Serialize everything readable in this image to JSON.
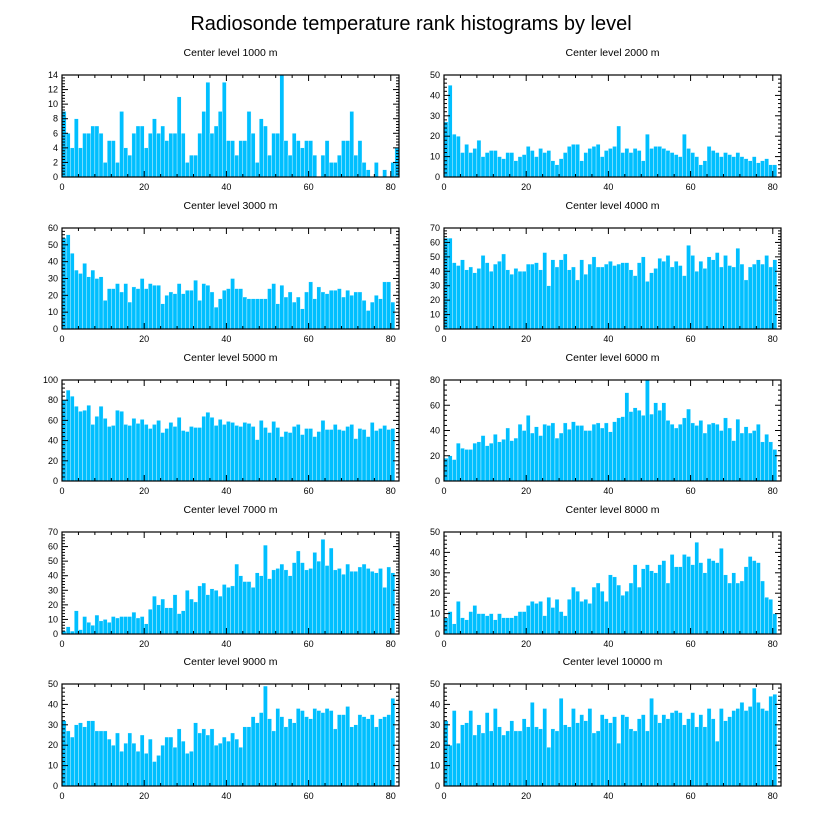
{
  "chart_data": {
    "type": "bar",
    "title": "Radiosonde temperature rank histograms by level",
    "panels": [
      {
        "title": "Center level 1000 m",
        "xlim": [
          0,
          82
        ],
        "ylim": [
          0,
          14
        ],
        "xticks": [
          0,
          20,
          40,
          60,
          80
        ],
        "yticks": [
          0,
          2,
          4,
          6,
          8,
          10,
          12,
          14
        ],
        "values": [
          9,
          6,
          4,
          8,
          4,
          6,
          6,
          7,
          7,
          6,
          2,
          5,
          5,
          2,
          9,
          4,
          3,
          6,
          7,
          7,
          4,
          6,
          8,
          6,
          7,
          5,
          6,
          6,
          11,
          6,
          2,
          3,
          3,
          6,
          9,
          13,
          6,
          7,
          9,
          13,
          5,
          5,
          3,
          5,
          5,
          9,
          6,
          2,
          8,
          7,
          3,
          6,
          6,
          14,
          5,
          3,
          6,
          5,
          4,
          5,
          5,
          3,
          0,
          3,
          5,
          2,
          2,
          3,
          5,
          5,
          9,
          3,
          5,
          2,
          1,
          0,
          2,
          0,
          1,
          0,
          2,
          4
        ]
      },
      {
        "title": "Center level 2000 m",
        "xlim": [
          0,
          82
        ],
        "ylim": [
          0,
          50
        ],
        "xticks": [
          0,
          20,
          40,
          60,
          80
        ],
        "yticks": [
          0,
          10,
          20,
          30,
          40,
          50
        ],
        "values": [
          27,
          45,
          21,
          20,
          12,
          16,
          12,
          14,
          18,
          10,
          12,
          13,
          13,
          10,
          9,
          12,
          12,
          8,
          10,
          11,
          15,
          13,
          10,
          14,
          12,
          13,
          8,
          6,
          9,
          12,
          15,
          16,
          16,
          8,
          12,
          14,
          15,
          16,
          10,
          13,
          14,
          15,
          25,
          12,
          14,
          12,
          14,
          13,
          8,
          21,
          14,
          15,
          15,
          14,
          13,
          12,
          11,
          10,
          21,
          14,
          12,
          10,
          6,
          8,
          15,
          13,
          12,
          10,
          12,
          11,
          10,
          12,
          10,
          9,
          8,
          10,
          7,
          8,
          9,
          6,
          6
        ]
      },
      {
        "title": "Center level 3000 m",
        "xlim": [
          0,
          82
        ],
        "ylim": [
          0,
          60
        ],
        "xticks": [
          0,
          20,
          40,
          60,
          80
        ],
        "yticks": [
          0,
          10,
          20,
          30,
          40,
          50,
          60
        ],
        "values": [
          54,
          56,
          45,
          35,
          33,
          39,
          31,
          35,
          30,
          31,
          17,
          24,
          24,
          27,
          22,
          27,
          16,
          25,
          24,
          30,
          24,
          27,
          26,
          26,
          15,
          20,
          22,
          21,
          27,
          21,
          23,
          23,
          29,
          17,
          27,
          26,
          22,
          13,
          18,
          23,
          24,
          30,
          24,
          24,
          19,
          18,
          18,
          18,
          18,
          18,
          24,
          27,
          15,
          26,
          19,
          22,
          16,
          19,
          12,
          22,
          28,
          18,
          25,
          22,
          21,
          23,
          23,
          24,
          19,
          23,
          20,
          22,
          22,
          17,
          11,
          16,
          20,
          18,
          28,
          28,
          16
        ]
      },
      {
        "title": "Center level 4000 m",
        "xlim": [
          0,
          82
        ],
        "ylim": [
          0,
          70
        ],
        "xticks": [
          0,
          20,
          40,
          60,
          80
        ],
        "yticks": [
          0,
          10,
          20,
          30,
          40,
          50,
          60,
          70
        ],
        "values": [
          63,
          63,
          46,
          44,
          48,
          41,
          43,
          39,
          42,
          51,
          46,
          40,
          45,
          47,
          52,
          41,
          38,
          42,
          40,
          40,
          45,
          45,
          46,
          41,
          53,
          30,
          48,
          43,
          48,
          52,
          41,
          43,
          34,
          48,
          38,
          45,
          50,
          43,
          43,
          45,
          47,
          44,
          45,
          46,
          46,
          41,
          37,
          46,
          50,
          33,
          39,
          42,
          49,
          47,
          51,
          43,
          47,
          44,
          37,
          58,
          51,
          40,
          47,
          42,
          50,
          48,
          53,
          43,
          51,
          44,
          43,
          56,
          45,
          34,
          43,
          45,
          48,
          45,
          51,
          43,
          48
        ]
      },
      {
        "title": "Center level 5000 m",
        "xlim": [
          0,
          82
        ],
        "ylim": [
          0,
          100
        ],
        "xticks": [
          0,
          20,
          40,
          60,
          80
        ],
        "yticks": [
          0,
          20,
          40,
          60,
          80,
          100
        ],
        "values": [
          80,
          90,
          84,
          74,
          69,
          70,
          75,
          56,
          64,
          74,
          62,
          54,
          55,
          70,
          69,
          56,
          55,
          62,
          57,
          61,
          56,
          52,
          56,
          60,
          48,
          52,
          58,
          54,
          63,
          50,
          49,
          54,
          53,
          53,
          64,
          68,
          63,
          55,
          61,
          56,
          59,
          58,
          55,
          54,
          58,
          57,
          54,
          41,
          60,
          53,
          48,
          59,
          53,
          44,
          49,
          48,
          54,
          56,
          46,
          52,
          52,
          44,
          49,
          60,
          51,
          51,
          56,
          51,
          50,
          54,
          56,
          42,
          52,
          51,
          44,
          58,
          50,
          52,
          55,
          51,
          52
        ]
      },
      {
        "title": "Center level 6000 m",
        "xlim": [
          0,
          82
        ],
        "ylim": [
          0,
          80
        ],
        "xticks": [
          0,
          20,
          40,
          60,
          80
        ],
        "yticks": [
          0,
          20,
          40,
          60,
          80
        ],
        "values": [
          18,
          20,
          17,
          30,
          26,
          25,
          25,
          30,
          31,
          36,
          28,
          30,
          37,
          31,
          33,
          42,
          32,
          34,
          45,
          40,
          52,
          38,
          43,
          36,
          45,
          44,
          46,
          34,
          38,
          46,
          41,
          47,
          44,
          44,
          40,
          40,
          45,
          46,
          42,
          46,
          39,
          47,
          50,
          51,
          70,
          55,
          58,
          56,
          52,
          80,
          53,
          62,
          56,
          62,
          48,
          45,
          42,
          45,
          50,
          57,
          46,
          44,
          48,
          38,
          45,
          46,
          45,
          40,
          50,
          42,
          32,
          49,
          38,
          43,
          38,
          40,
          45,
          31,
          37,
          31,
          25
        ]
      },
      {
        "title": "Center level 7000 m",
        "xlim": [
          0,
          82
        ],
        "ylim": [
          0,
          70
        ],
        "xticks": [
          0,
          20,
          40,
          60,
          80
        ],
        "yticks": [
          0,
          10,
          20,
          30,
          40,
          50,
          60,
          70
        ],
        "values": [
          2,
          5,
          2,
          16,
          3,
          12,
          8,
          6,
          13,
          9,
          10,
          8,
          12,
          11,
          12,
          12,
          12,
          15,
          11,
          12,
          7,
          17,
          26,
          20,
          24,
          18,
          18,
          27,
          14,
          16,
          30,
          24,
          22,
          33,
          35,
          27,
          31,
          30,
          26,
          34,
          32,
          33,
          48,
          40,
          36,
          36,
          32,
          42,
          40,
          61,
          38,
          44,
          45,
          48,
          44,
          40,
          49,
          57,
          49,
          44,
          45,
          56,
          50,
          65,
          47,
          59,
          44,
          45,
          41,
          48,
          43,
          43,
          46,
          48,
          45,
          43,
          42,
          45,
          32,
          46,
          42
        ]
      },
      {
        "title": "Center level 8000 m",
        "xlim": [
          0,
          82
        ],
        "ylim": [
          0,
          50
        ],
        "xticks": [
          0,
          20,
          40,
          60,
          80
        ],
        "yticks": [
          0,
          10,
          20,
          30,
          40,
          50
        ],
        "values": [
          8,
          11,
          5,
          16,
          8,
          7,
          11,
          14,
          10,
          10,
          9,
          10,
          7,
          10,
          8,
          8,
          8,
          9,
          11,
          11,
          14,
          16,
          15,
          16,
          9,
          18,
          13,
          17,
          11,
          9,
          17,
          23,
          21,
          16,
          17,
          15,
          23,
          25,
          21,
          16,
          29,
          28,
          24,
          19,
          21,
          25,
          34,
          23,
          32,
          34,
          31,
          30,
          34,
          36,
          25,
          39,
          33,
          33,
          39,
          38,
          34,
          45,
          35,
          30,
          37,
          36,
          35,
          42,
          29,
          25,
          30,
          25,
          26,
          33,
          38,
          36,
          35,
          26,
          18,
          17,
          10
        ]
      },
      {
        "title": "Center level 9000 m",
        "xlim": [
          0,
          82
        ],
        "ylim": [
          0,
          50
        ],
        "xticks": [
          0,
          20,
          40,
          60,
          80
        ],
        "yticks": [
          0,
          10,
          20,
          30,
          40,
          50
        ],
        "values": [
          32,
          27,
          24,
          30,
          31,
          29,
          32,
          32,
          27,
          27,
          27,
          23,
          20,
          26,
          17,
          21,
          26,
          21,
          17,
          25,
          16,
          23,
          12,
          15,
          20,
          24,
          24,
          19,
          28,
          22,
          16,
          17,
          31,
          26,
          28,
          25,
          28,
          20,
          21,
          24,
          22,
          26,
          23,
          19,
          29,
          29,
          34,
          31,
          36,
          49,
          33,
          27,
          38,
          34,
          29,
          33,
          31,
          38,
          37,
          34,
          33,
          38,
          37,
          36,
          38,
          37,
          28,
          35,
          35,
          39,
          29,
          30,
          35,
          34,
          33,
          35,
          29,
          33,
          34,
          35,
          43
        ]
      },
      {
        "title": "Center level 10000 m",
        "xlim": [
          0,
          82
        ],
        "ylim": [
          0,
          50
        ],
        "xticks": [
          0,
          20,
          40,
          60,
          80
        ],
        "yticks": [
          0,
          10,
          20,
          30,
          40,
          50
        ],
        "values": [
          32,
          20,
          37,
          21,
          30,
          31,
          37,
          25,
          30,
          26,
          36,
          27,
          38,
          29,
          25,
          27,
          32,
          27,
          27,
          33,
          29,
          41,
          29,
          28,
          38,
          19,
          28,
          27,
          43,
          30,
          29,
          38,
          31,
          35,
          32,
          38,
          26,
          27,
          35,
          33,
          31,
          34,
          21,
          35,
          34,
          28,
          27,
          33,
          35,
          27,
          43,
          35,
          31,
          35,
          33,
          36,
          37,
          36,
          30,
          33,
          36,
          29,
          35,
          29,
          38,
          33,
          22,
          38,
          32,
          34,
          37,
          38,
          41,
          37,
          39,
          48,
          41,
          38,
          37,
          44,
          45
        ]
      }
    ]
  }
}
